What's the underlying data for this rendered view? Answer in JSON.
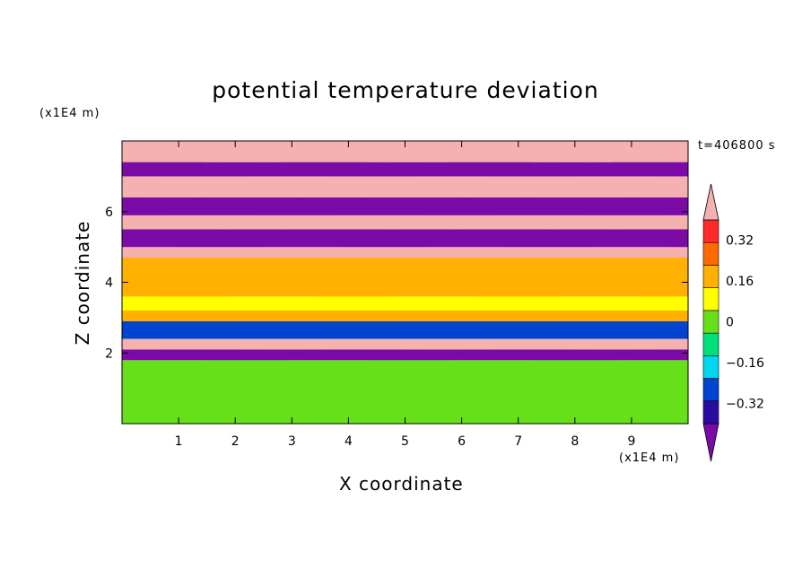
{
  "chart_data": {
    "type": "heatmap",
    "title": "potential temperature deviation",
    "xlabel": "X coordinate",
    "ylabel": "Z coordinate",
    "x_unit": "(x1E4 m)",
    "z_unit": "(x1E4 m)",
    "time_label": "t=406800 s",
    "xlim": [
      0,
      10
    ],
    "ylim": [
      0,
      8
    ],
    "x_ticks": [
      1,
      2,
      3,
      4,
      5,
      6,
      7,
      8,
      9
    ],
    "y_ticks": [
      2,
      4,
      6
    ],
    "colorbar": {
      "levels": [
        -0.4,
        -0.32,
        -0.24,
        -0.16,
        -0.08,
        0,
        0.08,
        0.16,
        0.24,
        0.32,
        0.4
      ],
      "tick_values": [
        0.32,
        0.16,
        0,
        -0.16,
        -0.32
      ],
      "tick_labels": [
        "0.32",
        "0.16",
        "0",
        "−0.16",
        "−0.32"
      ],
      "colors": [
        "#7a0ba6",
        "#2a0ca0",
        "#0044d0",
        "#00d8f0",
        "#00e07a",
        "#66e01a",
        "#ffff00",
        "#ffb000",
        "#ff6a00",
        "#ff2a2a",
        "#f5b0b0"
      ]
    },
    "bands": [
      {
        "z": [
          0.0,
          1.8
        ],
        "value": 0.0
      },
      {
        "z": [
          1.8,
          2.1
        ],
        "value": -0.4
      },
      {
        "z": [
          2.1,
          2.4
        ],
        "value": 0.4
      },
      {
        "z": [
          2.4,
          2.9
        ],
        "value": -0.2
      },
      {
        "z": [
          2.9,
          3.2
        ],
        "value": 0.2
      },
      {
        "z": [
          3.2,
          3.6
        ],
        "value": 0.1
      },
      {
        "z": [
          3.6,
          4.2
        ],
        "value": 0.16
      },
      {
        "z": [
          4.2,
          4.7
        ],
        "value": 0.2
      },
      {
        "z": [
          4.7,
          5.0
        ],
        "value": 0.4
      },
      {
        "z": [
          5.0,
          5.5
        ],
        "value": -0.4
      },
      {
        "z": [
          5.5,
          5.9
        ],
        "value": 0.4
      },
      {
        "z": [
          5.9,
          6.4
        ],
        "value": -0.4
      },
      {
        "z": [
          6.4,
          7.0
        ],
        "value": 0.4
      },
      {
        "z": [
          7.0,
          7.4
        ],
        "value": -0.4
      },
      {
        "z": [
          7.4,
          8.0
        ],
        "value": 0.4
      }
    ]
  }
}
